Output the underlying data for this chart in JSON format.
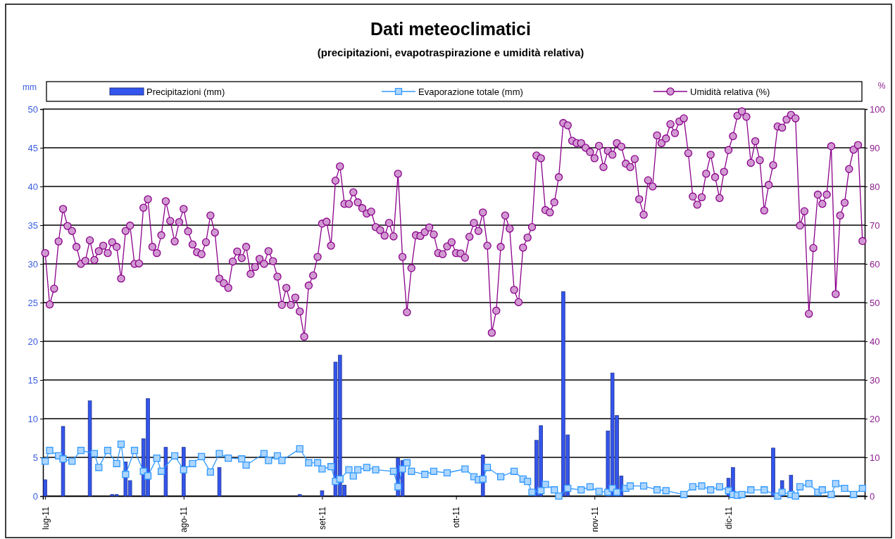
{
  "chart_data": {
    "type": "bar",
    "title": "Dati meteoclimatici",
    "subtitle": "(precipitazioni, evapotraspirazione e umidità relativa)",
    "ylabel": "mm",
    "y2label": "%",
    "xlim": [
      "2011-06-30T12:00",
      "2011-12-31T12:00"
    ],
    "xticks": [
      {
        "value": "2011-07-01",
        "label": "lug-11"
      },
      {
        "value": "2011-08-01",
        "label": "ago-11"
      },
      {
        "value": "2011-09-01",
        "label": "set-11"
      },
      {
        "value": "2011-10-01",
        "label": "ott-11"
      },
      {
        "value": "2011-11-01",
        "label": "nov-11"
      },
      {
        "value": "2011-12-01",
        "label": "dic-11"
      }
    ],
    "ylim": [
      0,
      50
    ],
    "yticks": [
      0,
      5,
      10,
      15,
      20,
      25,
      30,
      35,
      40,
      45,
      50
    ],
    "y2lim": [
      0,
      100
    ],
    "y2ticks": [
      0,
      10,
      20,
      30,
      40,
      50,
      60,
      70,
      80,
      90,
      100
    ],
    "grid": "y",
    "legend": "top",
    "series": [
      {
        "name": "Precipitazioni (mm)",
        "color": "#3355ee",
        "x": [
          "2011-07-01",
          "2011-07-05",
          "2011-07-11",
          "2011-07-16",
          "2011-07-17",
          "2011-07-19",
          "2011-07-20",
          "2011-07-23",
          "2011-07-24",
          "2011-07-28",
          "2011-08-01",
          "2011-08-09",
          "2011-08-27",
          "2011-09-01",
          "2011-09-04",
          "2011-09-05",
          "2011-09-06",
          "2011-09-18",
          "2011-09-19",
          "2011-10-07",
          "2011-10-19",
          "2011-10-20",
          "2011-10-25",
          "2011-10-26",
          "2011-11-04",
          "2011-11-05",
          "2011-11-06",
          "2011-11-07",
          "2011-12-01",
          "2011-12-02",
          "2011-12-11",
          "2011-12-13",
          "2011-12-15"
        ],
        "values": [
          2.1,
          9.0,
          12.3,
          0.2,
          0.2,
          4.4,
          2.0,
          7.4,
          12.6,
          6.3,
          6.3,
          3.7,
          0.2,
          0.7,
          17.3,
          18.2,
          1.4,
          4.9,
          4.6,
          5.3,
          7.2,
          9.1,
          26.4,
          7.9,
          8.4,
          15.9,
          10.4,
          2.6,
          2.3,
          3.7,
          6.2,
          2.0,
          2.7
        ]
      },
      {
        "name": "Evaporazione totale (mm)",
        "type": "line",
        "marker": "square",
        "color": "#3399ff",
        "x": [
          "2011-07-01",
          "2011-07-02",
          "2011-07-04",
          "2011-07-05",
          "2011-07-07",
          "2011-07-09",
          "2011-07-12",
          "2011-07-13",
          "2011-07-15",
          "2011-07-17",
          "2011-07-18",
          "2011-07-19",
          "2011-07-21",
          "2011-07-23",
          "2011-07-24",
          "2011-07-26",
          "2011-07-27",
          "2011-07-30",
          "2011-08-01",
          "2011-08-03",
          "2011-08-05",
          "2011-08-07",
          "2011-08-09",
          "2011-08-11",
          "2011-08-14",
          "2011-08-15",
          "2011-08-19",
          "2011-08-20",
          "2011-08-22",
          "2011-08-23",
          "2011-08-27",
          "2011-08-29",
          "2011-08-31",
          "2011-09-01",
          "2011-09-03",
          "2011-09-04",
          "2011-09-05",
          "2011-09-07",
          "2011-09-08",
          "2011-09-09",
          "2011-09-11",
          "2011-09-13",
          "2011-09-17",
          "2011-09-18",
          "2011-09-19",
          "2011-09-20",
          "2011-09-21",
          "2011-09-24",
          "2011-09-26",
          "2011-09-29",
          "2011-10-03",
          "2011-10-05",
          "2011-10-06",
          "2011-10-07",
          "2011-10-08",
          "2011-10-11",
          "2011-10-14",
          "2011-10-16",
          "2011-10-17",
          "2011-10-18",
          "2011-10-20",
          "2011-10-21",
          "2011-10-23",
          "2011-10-24",
          "2011-10-26",
          "2011-10-29",
          "2011-10-31",
          "2011-11-02",
          "2011-11-04",
          "2011-11-05",
          "2011-11-06",
          "2011-11-08",
          "2011-11-09",
          "2011-11-12",
          "2011-11-15",
          "2011-11-17",
          "2011-11-21",
          "2011-11-23",
          "2011-11-25",
          "2011-11-27",
          "2011-11-29",
          "2011-12-01",
          "2011-12-02",
          "2011-12-03",
          "2011-12-04",
          "2011-12-06",
          "2011-12-09",
          "2011-12-12",
          "2011-12-13",
          "2011-12-15",
          "2011-12-16",
          "2011-12-17",
          "2011-12-19",
          "2011-12-21",
          "2011-12-22",
          "2011-12-24",
          "2011-12-25",
          "2011-12-27",
          "2011-12-29",
          "2011-12-31"
        ],
        "values": [
          4.5,
          5.9,
          5.2,
          4.8,
          4.5,
          5.9,
          5.5,
          3.7,
          5.9,
          4.2,
          6.7,
          2.8,
          5.9,
          3.2,
          2.6,
          4.9,
          3.2,
          5.2,
          3.4,
          4.2,
          5.1,
          3.1,
          5.5,
          4.9,
          4.8,
          4.0,
          5.5,
          4.6,
          5.2,
          4.6,
          6.1,
          4.3,
          4.3,
          3.5,
          3.8,
          1.9,
          2.2,
          3.4,
          2.6,
          3.4,
          3.7,
          3.4,
          3.2,
          1.2,
          3.5,
          4.3,
          3.2,
          2.8,
          3.2,
          3.0,
          3.5,
          2.5,
          2.1,
          2.2,
          3.7,
          2.5,
          3.2,
          2.2,
          1.9,
          0.5,
          0.7,
          1.5,
          0.8,
          0,
          1.0,
          0.8,
          1.2,
          0.6,
          0.5,
          1.0,
          0.5,
          1.0,
          1.3,
          1.3,
          0.8,
          0.7,
          0.2,
          1.2,
          1.3,
          0.8,
          1.2,
          0.7,
          0.2,
          0.1,
          0.2,
          0.8,
          0.8,
          0,
          0.5,
          0.2,
          0,
          1.2,
          1.6,
          0.5,
          0.8,
          0.2,
          1.6,
          1.0,
          0.2,
          1.0
        ]
      },
      {
        "name": "Umidità relativa (%)",
        "type": "line",
        "marker": "circle",
        "axis": "y2",
        "color": "#8b008b",
        "x": [
          "2011-07-01",
          "2011-07-02",
          "2011-07-03",
          "2011-07-04",
          "2011-07-05",
          "2011-07-06",
          "2011-07-07",
          "2011-07-08",
          "2011-07-09",
          "2011-07-10",
          "2011-07-11",
          "2011-07-12",
          "2011-07-13",
          "2011-07-14",
          "2011-07-15",
          "2011-07-16",
          "2011-07-17",
          "2011-07-18",
          "2011-07-19",
          "2011-07-20",
          "2011-07-21",
          "2011-07-22",
          "2011-07-23",
          "2011-07-24",
          "2011-07-25",
          "2011-07-26",
          "2011-07-27",
          "2011-07-28",
          "2011-07-29",
          "2011-07-30",
          "2011-07-31",
          "2011-08-01",
          "2011-08-02",
          "2011-08-03",
          "2011-08-04",
          "2011-08-05",
          "2011-08-06",
          "2011-08-07",
          "2011-08-08",
          "2011-08-09",
          "2011-08-10",
          "2011-08-11",
          "2011-08-12",
          "2011-08-13",
          "2011-08-14",
          "2011-08-15",
          "2011-08-16",
          "2011-08-17",
          "2011-08-18",
          "2011-08-19",
          "2011-08-20",
          "2011-08-21",
          "2011-08-22",
          "2011-08-23",
          "2011-08-24",
          "2011-08-25",
          "2011-08-26",
          "2011-08-27",
          "2011-08-28",
          "2011-08-29",
          "2011-08-30",
          "2011-08-31",
          "2011-09-01",
          "2011-09-02",
          "2011-09-03",
          "2011-09-04",
          "2011-09-05",
          "2011-09-06",
          "2011-09-07",
          "2011-09-08",
          "2011-09-09",
          "2011-09-10",
          "2011-09-11",
          "2011-09-12",
          "2011-09-13",
          "2011-09-14",
          "2011-09-15",
          "2011-09-16",
          "2011-09-17",
          "2011-09-18",
          "2011-09-19",
          "2011-09-20",
          "2011-09-21",
          "2011-09-22",
          "2011-09-23",
          "2011-09-24",
          "2011-09-25",
          "2011-09-26",
          "2011-09-27",
          "2011-09-28",
          "2011-09-29",
          "2011-09-30",
          "2011-10-01",
          "2011-10-02",
          "2011-10-03",
          "2011-10-04",
          "2011-10-05",
          "2011-10-06",
          "2011-10-07",
          "2011-10-08",
          "2011-10-09",
          "2011-10-10",
          "2011-10-11",
          "2011-10-12",
          "2011-10-13",
          "2011-10-14",
          "2011-10-15",
          "2011-10-16",
          "2011-10-17",
          "2011-10-18",
          "2011-10-19",
          "2011-10-20",
          "2011-10-21",
          "2011-10-22",
          "2011-10-23",
          "2011-10-24",
          "2011-10-25",
          "2011-10-26",
          "2011-10-27",
          "2011-10-28",
          "2011-10-29",
          "2011-10-30",
          "2011-10-31",
          "2011-11-01",
          "2011-11-02",
          "2011-11-03",
          "2011-11-04",
          "2011-11-05",
          "2011-11-06",
          "2011-11-07",
          "2011-11-08",
          "2011-11-09",
          "2011-11-10",
          "2011-11-11",
          "2011-11-12",
          "2011-11-13",
          "2011-11-14",
          "2011-11-15",
          "2011-11-16",
          "2011-11-17",
          "2011-11-18",
          "2011-11-19",
          "2011-11-20",
          "2011-11-21",
          "2011-11-22",
          "2011-11-23",
          "2011-11-24",
          "2011-11-25",
          "2011-11-26",
          "2011-11-27",
          "2011-11-28",
          "2011-11-29",
          "2011-11-30",
          "2011-12-01",
          "2011-12-02",
          "2011-12-03",
          "2011-12-04",
          "2011-12-05",
          "2011-12-06",
          "2011-12-07",
          "2011-12-08",
          "2011-12-09",
          "2011-12-10",
          "2011-12-11",
          "2011-12-12",
          "2011-12-13",
          "2011-12-14",
          "2011-12-15",
          "2011-12-16",
          "2011-12-17",
          "2011-12-18",
          "2011-12-19",
          "2011-12-20",
          "2011-12-21",
          "2011-12-22",
          "2011-12-23",
          "2011-12-24",
          "2011-12-25",
          "2011-12-26",
          "2011-12-27",
          "2011-12-28",
          "2011-12-29",
          "2011-12-30",
          "2011-12-31"
        ],
        "values": [
          62.8,
          49.5,
          53.6,
          65.8,
          74.2,
          69.8,
          68.5,
          64.4,
          60.0,
          60.8,
          66.1,
          61.0,
          63.3,
          64.7,
          62.8,
          65.6,
          64.4,
          56.2,
          68.5,
          69.9,
          60.0,
          60.1,
          74.5,
          76.7,
          64.4,
          62.8,
          67.4,
          76.2,
          71.1,
          65.8,
          70.8,
          74.2,
          68.4,
          65.0,
          63.0,
          62.5,
          65.6,
          72.5,
          68.1,
          56.2,
          55.0,
          53.8,
          60.6,
          63.2,
          61.5,
          64.4,
          57.4,
          59.2,
          61.3,
          60.0,
          63.3,
          60.7,
          56.7,
          49.4,
          53.8,
          49.4,
          51.3,
          47.7,
          41.2,
          54.4,
          57.0,
          61.8,
          70.4,
          70.9,
          64.7,
          81.5,
          85.2,
          75.5,
          75.5,
          78.5,
          75.9,
          74.4,
          73.0,
          73.5,
          69.5,
          68.7,
          67.3,
          70.6,
          67.1,
          83.3,
          61.8,
          47.5,
          58.9,
          67.4,
          67.2,
          68.2,
          69.4,
          67.6,
          62.8,
          62.5,
          64.5,
          65.6,
          62.8,
          62.7,
          61.6,
          67.0,
          70.6,
          68.5,
          73.3,
          64.7,
          42.2,
          47.9,
          64.4,
          72.5,
          69.1,
          53.3,
          50.1,
          64.2,
          66.8,
          69.5,
          88.0,
          87.3,
          73.9,
          73.3,
          75.9,
          82.4,
          96.4,
          95.8,
          91.8,
          91.2,
          91.2,
          90.0,
          88.9,
          87.3,
          90.5,
          85.0,
          89.2,
          88.2,
          91.2,
          90.3,
          85.9,
          85.0,
          87.1,
          76.7,
          72.7,
          81.6,
          80.0,
          93.2,
          91.2,
          92.4,
          96.1,
          93.8,
          96.8,
          97.6,
          88.6,
          77.4,
          75.3,
          77.2,
          83.3,
          88.2,
          82.4,
          77.0,
          83.8,
          89.4,
          93.0,
          98.3,
          99.4,
          98.0,
          86.1,
          91.7,
          86.8,
          73.8,
          80.4,
          85.5,
          95.5,
          95.2,
          97.3,
          98.5,
          97.6,
          69.9,
          73.6,
          47.1,
          64.1,
          77.9,
          75.5,
          77.9,
          90.4,
          52.2,
          72.5,
          75.8,
          84.5,
          89.5,
          90.7,
          65.9
        ]
      }
    ]
  }
}
